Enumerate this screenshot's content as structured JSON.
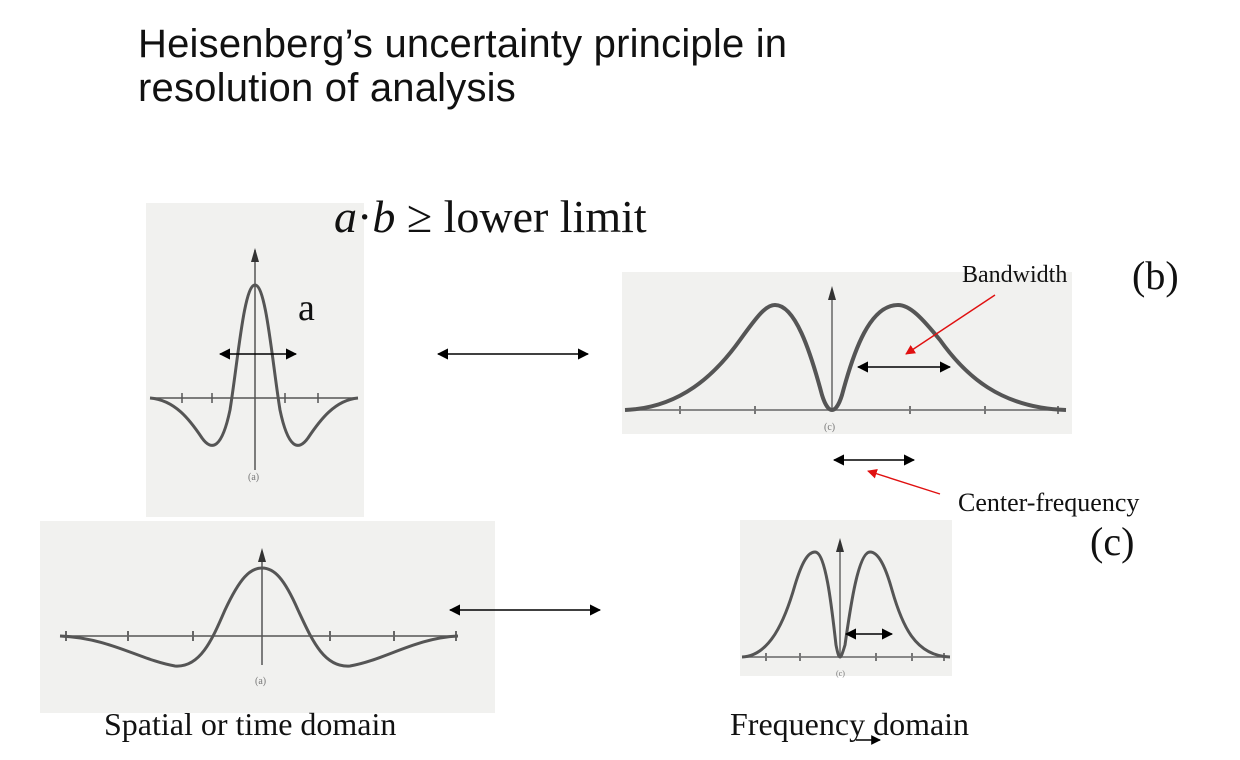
{
  "title": {
    "line1": "Heisenberg’s uncertainty principle in",
    "line2": "resolution of analysis"
  },
  "formula": {
    "a": "a",
    "dot": "·",
    "b": "b",
    "rest": "≥ lower limit"
  },
  "labels": {
    "a": "a",
    "bandwidth": "Bandwidth",
    "b": "(b)",
    "center_frequency": "Center-frequency",
    "c": "(c)",
    "spatial_domain": "Spatial or time domain",
    "frequency_domain": "Frequency domain"
  },
  "figure_captions": {
    "top_left": "(a)",
    "top_right": "(c)",
    "bottom_left": "(a)",
    "bottom_right": "(c)"
  },
  "colors": {
    "curve": "#444444",
    "arrow": "#000000",
    "pointer": "#e01010",
    "panel": "#f1f1ef"
  }
}
